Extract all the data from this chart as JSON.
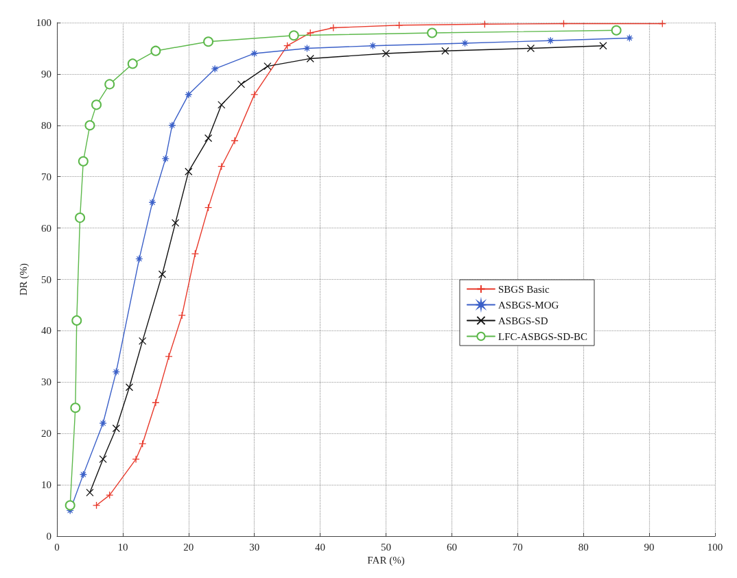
{
  "chart_data": {
    "type": "line",
    "xlabel": "FAR (%)",
    "ylabel": "DR (%)",
    "xlim": [
      0,
      100
    ],
    "ylim": [
      0,
      100
    ],
    "xticks": [
      0,
      10,
      20,
      30,
      40,
      50,
      60,
      70,
      80,
      90,
      100
    ],
    "yticks": [
      0,
      10,
      20,
      30,
      40,
      50,
      60,
      70,
      80,
      90,
      100
    ],
    "grid": true,
    "legend": "center right",
    "line_style": "solid",
    "series": [
      {
        "name": "SBGS Basic",
        "color": "#e8392b",
        "marker": "plus",
        "x": [
          6,
          8,
          12,
          13,
          15,
          17,
          19,
          21,
          23,
          25,
          27,
          30,
          35,
          38.5,
          42,
          52,
          65,
          77,
          92
        ],
        "values": [
          6,
          8,
          15,
          18,
          26,
          35,
          43,
          55,
          64,
          72,
          77,
          86,
          95.5,
          98,
          99,
          99.5,
          99.7,
          99.8,
          99.8
        ]
      },
      {
        "name": "ASBGS-MOG",
        "color": "#3a5fc8",
        "marker": "star",
        "x": [
          2,
          4,
          7,
          9,
          12.5,
          14.5,
          16.5,
          17.5,
          20,
          24,
          30,
          38,
          48,
          62,
          75,
          87
        ],
        "values": [
          5,
          12,
          22,
          32,
          54,
          65,
          73.5,
          80,
          86,
          91,
          94,
          95,
          95.5,
          96,
          96.5,
          97
        ]
      },
      {
        "name": "ASBGS-SD",
        "color": "#111111",
        "marker": "cross",
        "x": [
          5,
          7,
          9,
          11,
          13,
          16,
          18,
          20,
          23,
          25,
          28,
          32,
          38.5,
          50,
          59,
          72,
          83
        ],
        "values": [
          8.5,
          15,
          21,
          29,
          38,
          51,
          61,
          71,
          77.5,
          84,
          88,
          91.5,
          93,
          94,
          94.5,
          95,
          95.5
        ]
      },
      {
        "name": "LFC-ASBGS-SD-BC",
        "color": "#5cb84a",
        "marker": "circle",
        "x": [
          2,
          2.8,
          3,
          3.5,
          4,
          5,
          6,
          8,
          11.5,
          15,
          23,
          36,
          57,
          85
        ],
        "values": [
          6,
          25,
          42,
          62,
          73,
          80,
          84,
          88,
          92,
          94.5,
          96.3,
          97.5,
          98,
          98.5
        ]
      }
    ]
  }
}
